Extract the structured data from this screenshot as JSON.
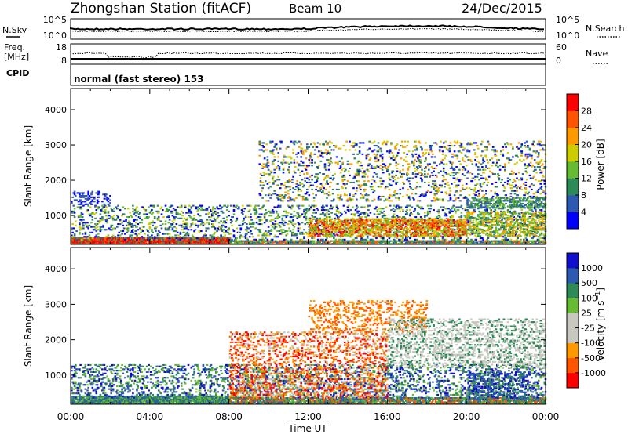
{
  "header": {
    "station": "Zhongshan Station (fitACF)",
    "beam": "Beam 10",
    "date": "24/Dec/2015"
  },
  "strip_sky": {
    "left_label": "N.Sky",
    "right_label": "N.Search",
    "left_ticks": [
      "10^5",
      "10^0"
    ],
    "right_ticks": [
      "10^5",
      "10^0"
    ]
  },
  "strip_freq": {
    "left_label_1": "Freq.",
    "left_label_2": "[MHz]",
    "right_label": "Nave",
    "left_ticks": [
      "18",
      "8"
    ],
    "right_ticks": [
      "60",
      "0"
    ]
  },
  "strip_cpid": {
    "label": "CPID",
    "text": "normal (fast stereo) 153"
  },
  "colors": {
    "power_scale": [
      "#0000ff",
      "#2e59b0",
      "#2e8b57",
      "#66bb33",
      "#cccc00",
      "#ff9900",
      "#ff5500",
      "#ff0000"
    ],
    "velocity_scale": [
      "#ff0000",
      "#ff5500",
      "#ff9900",
      "#c8c8c0",
      "#c8c8c0",
      "#66bb33",
      "#2e8b57",
      "#2e59b0",
      "#1010cc"
    ]
  },
  "chart_data": [
    {
      "type": "heatmap",
      "quantity": "power",
      "ylabel": "Slant Range [km]",
      "ylim": [
        180,
        4600
      ],
      "yticks": [
        "1000",
        "2000",
        "3000",
        "4000"
      ],
      "xlim_hours": [
        0,
        24
      ],
      "colorbar_label": "Power [dB]",
      "colorbar_ticks": [
        "4",
        "8",
        "12",
        "16",
        "20",
        "24",
        "28"
      ]
    },
    {
      "type": "heatmap",
      "quantity": "velocity",
      "ylabel": "Slant Range [km]",
      "ylim": [
        180,
        4600
      ],
      "yticks": [
        "1000",
        "2000",
        "3000",
        "4000"
      ],
      "xlim_hours": [
        0,
        24
      ],
      "xticks": [
        "00:00",
        "04:00",
        "08:00",
        "12:00",
        "16:00",
        "20:00",
        "00:00"
      ],
      "xlabel": "Time UT",
      "colorbar_label": "Velocity [m s^-1]",
      "colorbar_ticks": [
        "1000",
        "500",
        "100",
        "25",
        "-25",
        "-100",
        "-500",
        "-1000"
      ]
    }
  ]
}
